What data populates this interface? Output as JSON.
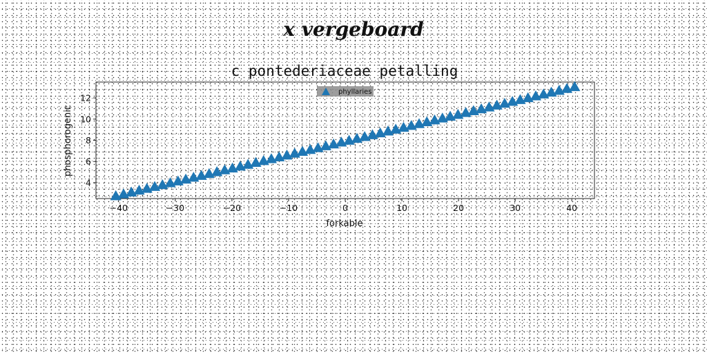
{
  "suptitle": "x vergeboard",
  "chart_data": {
    "type": "scatter",
    "title": "c pontederiaceae petalling",
    "xlabel": "forkable",
    "ylabel": "phosphorogenic",
    "xlim": [
      -44,
      44
    ],
    "ylim": [
      2.5,
      13.5
    ],
    "xticks": [
      -40,
      -30,
      -20,
      -10,
      0,
      10,
      20,
      30,
      40
    ],
    "yticks": [
      4,
      6,
      8,
      10,
      12
    ],
    "grid": false,
    "legend_position": "top-center",
    "series": [
      {
        "name": "phyllaries",
        "marker": "triangle-up",
        "color": "#1f77b4",
        "x_start": -40.5,
        "x_end": 40.5,
        "num_points": 60,
        "y_start": 2.7,
        "y_end": 13.0
      }
    ]
  }
}
